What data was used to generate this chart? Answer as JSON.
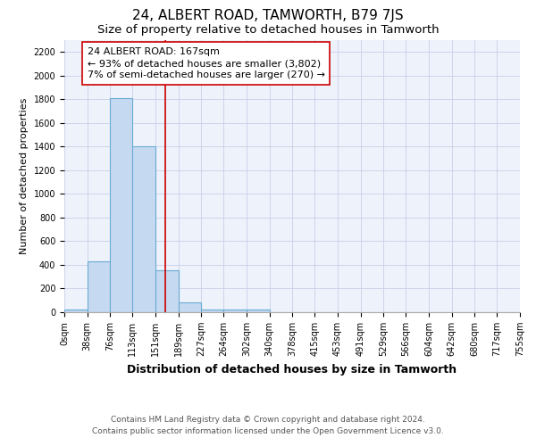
{
  "title": "24, ALBERT ROAD, TAMWORTH, B79 7JS",
  "subtitle": "Size of property relative to detached houses in Tamworth",
  "xlabel": "Distribution of detached houses by size in Tamworth",
  "ylabel": "Number of detached properties",
  "bar_color": "#c5d9f0",
  "bar_edge_color": "#6aaad4",
  "bar_heights": [
    20,
    430,
    1810,
    1400,
    355,
    80,
    25,
    25,
    20,
    0,
    0,
    0,
    0,
    0,
    0,
    0,
    0,
    0,
    0,
    0
  ],
  "bin_labels": [
    "0sqm",
    "38sqm",
    "76sqm",
    "113sqm",
    "151sqm",
    "189sqm",
    "227sqm",
    "264sqm",
    "302sqm",
    "340sqm",
    "378sqm",
    "415sqm",
    "453sqm",
    "491sqm",
    "529sqm",
    "566sqm",
    "604sqm",
    "642sqm",
    "680sqm",
    "717sqm",
    "755sqm"
  ],
  "bin_edges": [
    0,
    38,
    76,
    113,
    151,
    189,
    227,
    264,
    302,
    340,
    378,
    415,
    453,
    491,
    529,
    566,
    604,
    642,
    680,
    717,
    755
  ],
  "ylim": [
    0,
    2300
  ],
  "yticks": [
    0,
    200,
    400,
    600,
    800,
    1000,
    1200,
    1400,
    1600,
    1800,
    2000,
    2200
  ],
  "property_size": 167,
  "red_line_color": "#cc0000",
  "annotation_line1": "24 ALBERT ROAD: 167sqm",
  "annotation_line2": "← 93% of detached houses are smaller (3,802)",
  "annotation_line3": "7% of semi-detached houses are larger (270) →",
  "annotation_box_color": "#ffffff",
  "annotation_box_edge_color": "#cc0000",
  "footer_line1": "Contains HM Land Registry data © Crown copyright and database right 2024.",
  "footer_line2": "Contains public sector information licensed under the Open Government Licence v3.0.",
  "background_color": "#edf2fb",
  "grid_color": "#c8d0e8",
  "title_fontsize": 11,
  "subtitle_fontsize": 9.5,
  "xlabel_fontsize": 9,
  "ylabel_fontsize": 8,
  "tick_fontsize": 7,
  "annotation_fontsize": 8,
  "footer_fontsize": 6.5
}
